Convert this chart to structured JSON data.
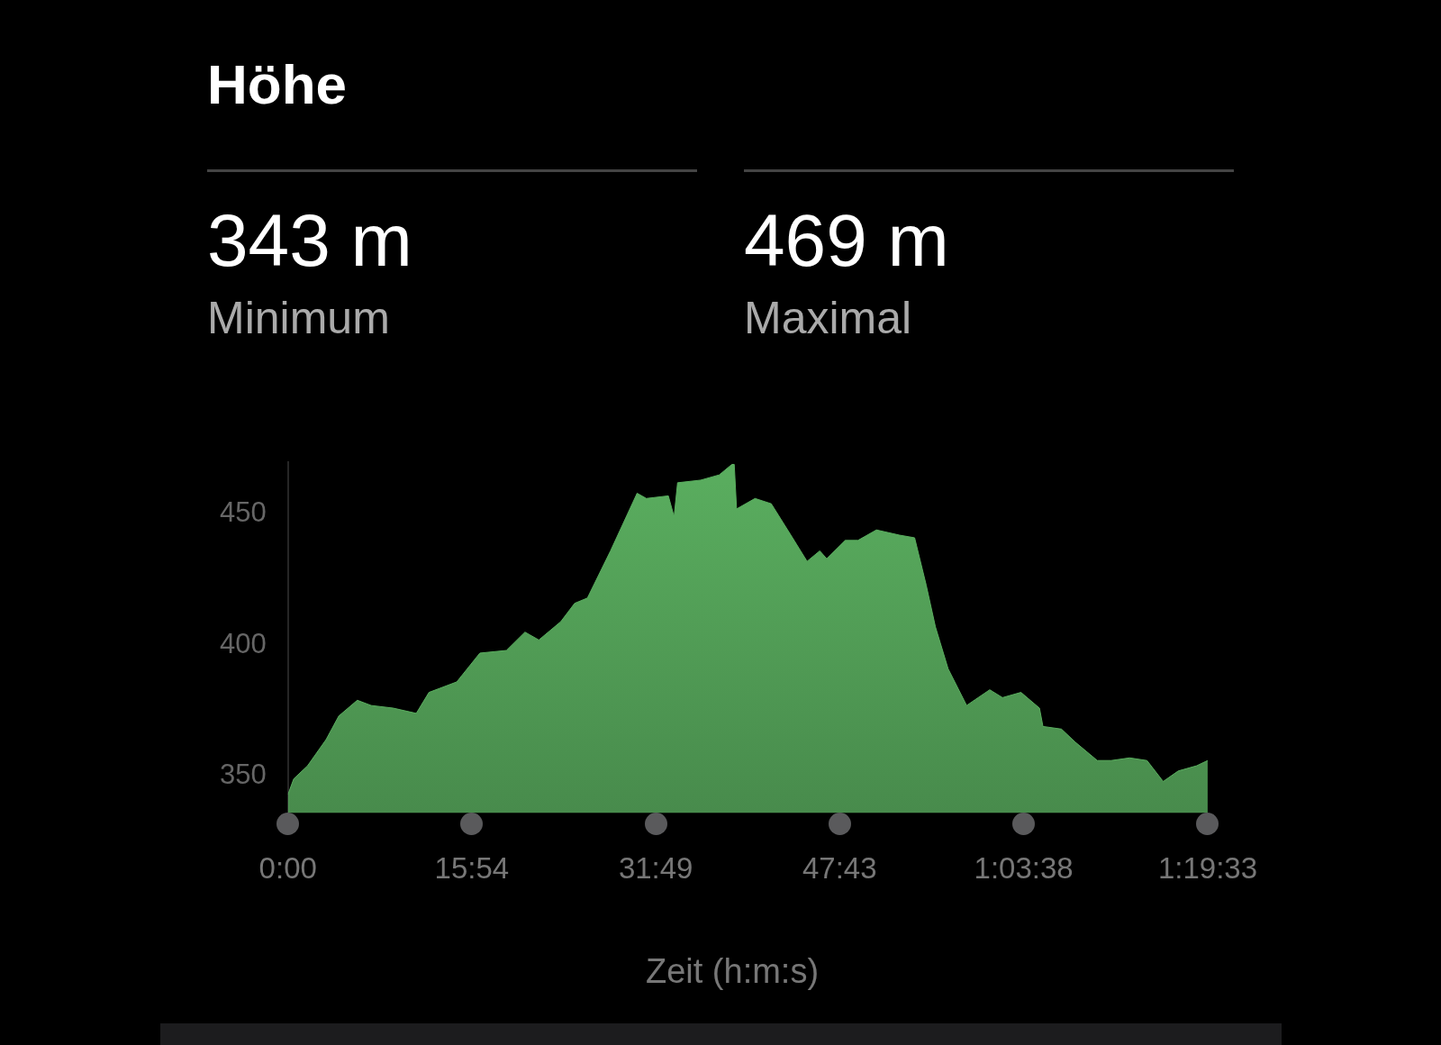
{
  "chart_data": {
    "type": "area",
    "title": "Höhe",
    "xlabel": "Zeit (h:m:s)",
    "annotations": [
      "343 m",
      "Minimum",
      "469 m",
      "Maximal"
    ],
    "x": [
      0,
      0.5,
      1.7,
      3.3,
      4.4,
      6.0,
      7.2,
      9.1,
      11.1,
      12.2,
      14.6,
      16.6,
      18.9,
      20.5,
      21.7,
      23.6,
      24.8,
      25.9,
      27.9,
      30.2,
      31.0,
      32.9,
      33.4,
      33.7,
      35.7,
      37.3,
      38.4,
      38.6,
      38.8,
      40.4,
      41.8,
      43.5,
      44.9,
      46.0,
      46.6,
      48.2,
      49.3,
      50.9,
      52.9,
      54.2,
      55.2,
      56.0,
      57.1,
      58.7,
      60.7,
      61.8,
      63.4,
      65.0,
      65.3,
      66.9,
      68.1,
      70.0,
      71.2,
      72.8,
      74.3,
      75.7,
      77.0,
      78.6,
      79.55
    ],
    "series": [
      {
        "color": "#5aae5f",
        "values": [
          343,
          349,
          354,
          364,
          373,
          379,
          377,
          376,
          374,
          382,
          386,
          397,
          398,
          405,
          402,
          409,
          416,
          418,
          436,
          458,
          456,
          457,
          449,
          462,
          463,
          465,
          469,
          469,
          452,
          456,
          454,
          442,
          432,
          436,
          433,
          440,
          440,
          444,
          442,
          441,
          423,
          407,
          391,
          377,
          383,
          380,
          382,
          376,
          369,
          368,
          363,
          356,
          356,
          357,
          356,
          348,
          352,
          354,
          356
        ]
      }
    ],
    "xlim": [
      0,
      79.55
    ],
    "xticks": [
      {
        "value": 0,
        "label": "0:00"
      },
      {
        "value": 15.9,
        "label": "15:54"
      },
      {
        "value": 31.817,
        "label": "31:49"
      },
      {
        "value": 47.717,
        "label": "47:43"
      },
      {
        "value": 63.633,
        "label": "1:03:38"
      },
      {
        "value": 79.55,
        "label": "1:19:33"
      }
    ],
    "ylim": [
      336,
      470
    ],
    "yticks": [
      350,
      400,
      450
    ],
    "grid": false,
    "legend": false
  }
}
